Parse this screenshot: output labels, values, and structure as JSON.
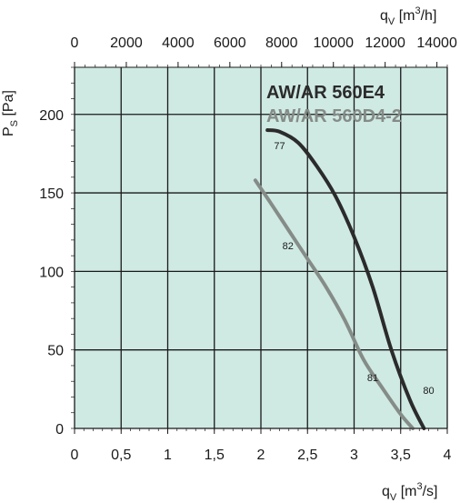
{
  "chart_data": {
    "type": "line",
    "background": "#cfe9e3",
    "grid": true,
    "x_bottom": {
      "label_main": "q",
      "label_sub": "V",
      "label_unit_pre": " [m",
      "label_sup": "3",
      "label_unit_post": "/s]",
      "ticks": [
        "0",
        "0,5",
        "1",
        "1,5",
        "2",
        "2,5",
        "3",
        "3,5",
        "4"
      ],
      "range": [
        0,
        4
      ]
    },
    "x_top": {
      "label_main": "q",
      "label_sub": "V",
      "label_unit_pre": " [m",
      "label_sup": "3",
      "label_unit_post": "/h]",
      "ticks": [
        "0",
        "2000",
        "4000",
        "6000",
        "8000",
        "10000",
        "12000",
        "14000"
      ],
      "range": [
        0,
        14400
      ]
    },
    "y": {
      "label_main": "P",
      "label_sub": "S",
      "label_unit": " [Pa]",
      "ticks": [
        "0",
        "50",
        "100",
        "150",
        "200"
      ],
      "range": [
        0,
        230
      ]
    },
    "series": [
      {
        "name": "AW/AR 560E4",
        "color": "#2b2b2b",
        "x": [
          2.07,
          2.2,
          2.4,
          2.6,
          2.8,
          3.0,
          3.2,
          3.4,
          3.6,
          3.75
        ],
        "y": [
          190,
          189,
          182,
          167,
          148,
          122,
          90,
          50,
          18,
          0
        ]
      },
      {
        "name": "AW/AR 560D4-2",
        "color": "#858c88",
        "x": [
          1.94,
          2.1,
          2.3,
          2.5,
          2.7,
          2.9,
          3.1,
          3.3,
          3.5,
          3.63
        ],
        "y": [
          158,
          144,
          126,
          108,
          90,
          69,
          44,
          26,
          9,
          0
        ]
      }
    ],
    "annotations": [
      {
        "text": "77",
        "x": 2.2,
        "y": 178
      },
      {
        "text": "82",
        "x": 2.29,
        "y": 114
      },
      {
        "text": "81",
        "x": 3.2,
        "y": 30
      },
      {
        "text": "80",
        "x": 3.8,
        "y": 22
      }
    ]
  }
}
